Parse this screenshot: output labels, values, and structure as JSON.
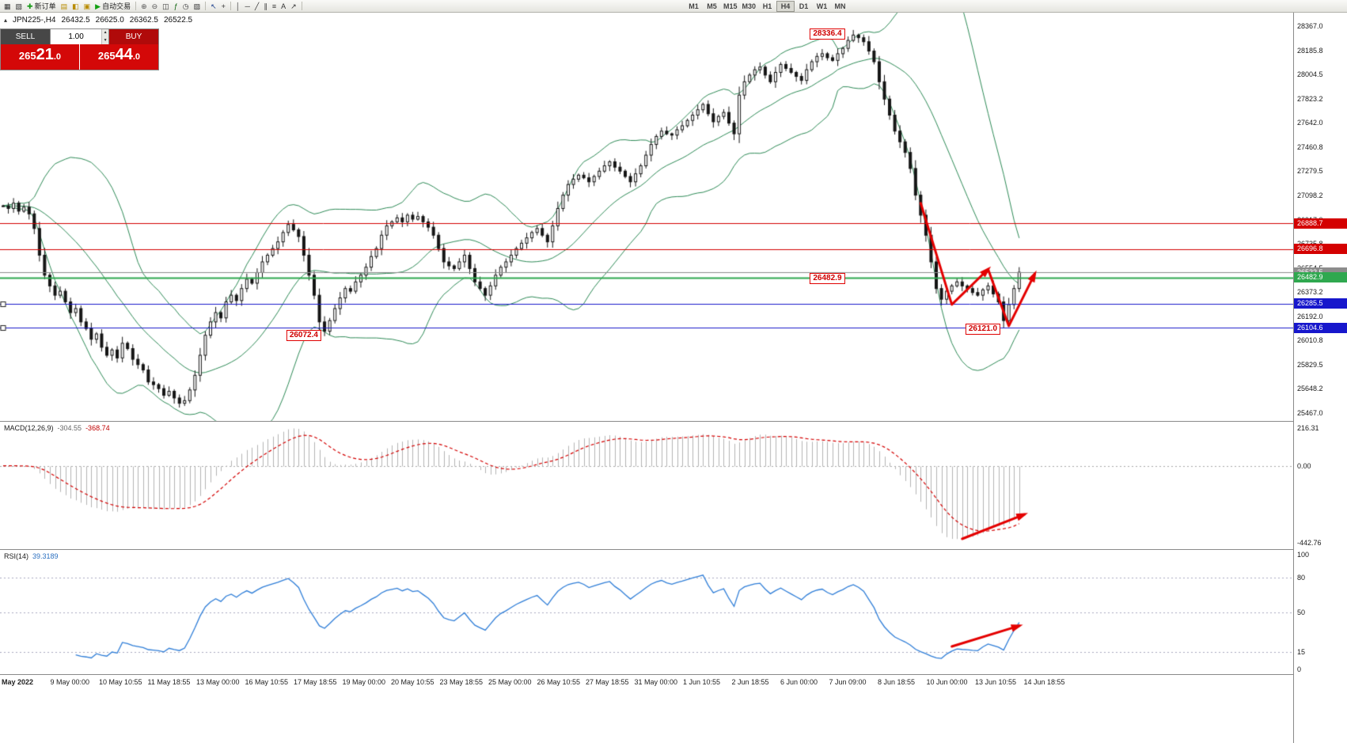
{
  "toolbar": {
    "buttons": [
      {
        "name": "new-chart-button",
        "icon": "new-chart-icon",
        "glyph": "▦"
      },
      {
        "name": "profiles-button",
        "icon": "profiles-icon",
        "glyph": "▧"
      },
      {
        "name": "new-order-button",
        "icon": "new-order-plus-icon",
        "glyph": "✚",
        "glyph_color": "#189a18",
        "label": "新订单"
      },
      {
        "name": "market-watch-button",
        "icon": "market-watch-icon",
        "glyph": "▤",
        "glyph_color": "#b98c00"
      },
      {
        "name": "navigator-button",
        "icon": "navigator-icon",
        "glyph": "◧",
        "glyph_color": "#b98c00"
      },
      {
        "name": "terminal-button",
        "icon": "terminal-icon",
        "glyph": "▣",
        "glyph_color": "#b98c00"
      },
      {
        "name": "autotrading-button",
        "icon": "autotrading-play-icon",
        "glyph": "▶",
        "glyph_color": "#12a012",
        "label": "自动交易"
      },
      {
        "sep": true
      },
      {
        "name": "zoom-in-button",
        "icon": "zoom-in-icon",
        "glyph": "⊕",
        "glyph_color": "#555"
      },
      {
        "name": "zoom-out-button",
        "icon": "zoom-out-icon",
        "glyph": "⊖",
        "glyph_color": "#555"
      },
      {
        "name": "tile-windows-button",
        "icon": "tile-windows-icon",
        "glyph": "◫"
      },
      {
        "name": "indicators-button",
        "icon": "indicators-icon",
        "glyph": "ƒ",
        "glyph_color": "#0a620a"
      },
      {
        "name": "periods-button",
        "icon": "clock-icon",
        "glyph": "◷"
      },
      {
        "name": "templates-button",
        "icon": "templates-icon",
        "glyph": "▨"
      },
      {
        "sep": true
      },
      {
        "name": "cursor-button",
        "icon": "cursor-icon",
        "glyph": "↖",
        "glyph_color": "#1a3e8c"
      },
      {
        "name": "crosshair-button",
        "icon": "crosshair-icon",
        "glyph": "+"
      },
      {
        "sep": true
      },
      {
        "name": "vertical-line-button",
        "icon": "vertical-line-icon",
        "glyph": "│"
      },
      {
        "name": "horizontal-line-button",
        "icon": "horizontal-line-icon",
        "glyph": "─"
      },
      {
        "name": "trendline-button",
        "icon": "trendline-icon",
        "glyph": "╱"
      },
      {
        "name": "channel-button",
        "icon": "channel-icon",
        "glyph": "∥"
      },
      {
        "name": "fibonacci-button",
        "icon": "fibonacci-icon",
        "glyph": "≡"
      },
      {
        "name": "text-button",
        "icon": "text-icon",
        "glyph": "A"
      },
      {
        "name": "arrows-button",
        "icon": "arrow-objects-icon",
        "glyph": "↗"
      },
      {
        "sep": true
      }
    ],
    "timeframes": [
      "M1",
      "M5",
      "M15",
      "M30",
      "H1",
      "H4",
      "D1",
      "W1",
      "MN"
    ],
    "active_timeframe": "H4"
  },
  "chart_header": {
    "symbol": "JPN225-,H4",
    "open": "26432.5",
    "high": "26625.0",
    "low": "26362.5",
    "close": "26522.5"
  },
  "trade_panel": {
    "sell_label": "SELL",
    "buy_label": "BUY",
    "volume": "1.00",
    "sell_price": "26521.0",
    "buy_price": "26544.0"
  },
  "chart_data": [
    {
      "type": "candlestick",
      "title": "JPN225- H4 candlestick chart with Bollinger Bands",
      "ylim": [
        25467.0,
        28367.0
      ],
      "y_ticks": [
        "28367.0",
        "28185.8",
        "28004.5",
        "27823.2",
        "27642.0",
        "27460.8",
        "27279.5",
        "27098.2",
        "26917.0",
        "26735.8",
        "26554.5",
        "26373.2",
        "26192.0",
        "26010.8",
        "25829.5",
        "25648.2",
        "25467.0"
      ],
      "x_labels": [
        "May 2022",
        "9 May 00:00",
        "10 May 10:55",
        "11 May 18:55",
        "13 May 00:00",
        "16 May 10:55",
        "17 May 18:55",
        "19 May 00:00",
        "20 May 10:55",
        "23 May 18:55",
        "25 May 00:00",
        "26 May 10:55",
        "27 May 18:55",
        "31 May 00:00",
        "1 Jun 10:55",
        "2 Jun 18:55",
        "6 Jun 00:00",
        "7 Jun 09:00",
        "8 Jun 18:55",
        "10 Jun 00:00",
        "13 Jun 10:55",
        "14 Jun 18:55"
      ],
      "closes": [
        27020,
        27000,
        27040,
        26980,
        27010,
        26960,
        26850,
        26650,
        26500,
        26420,
        26350,
        26380,
        26300,
        26220,
        26250,
        26150,
        26100,
        26020,
        26060,
        25960,
        25900,
        25940,
        25880,
        25990,
        25950,
        25870,
        25830,
        25790,
        25700,
        25680,
        25650,
        25600,
        25630,
        25580,
        25540,
        25560,
        25640,
        25750,
        25900,
        26050,
        26150,
        26220,
        26180,
        26300,
        26350,
        26310,
        26400,
        26470,
        26440,
        26520,
        26600,
        26650,
        26700,
        26750,
        26820,
        26880,
        26840,
        26790,
        26650,
        26500,
        26350,
        26150,
        26080,
        26160,
        26250,
        26330,
        26400,
        26380,
        26450,
        26500,
        26560,
        26640,
        26700,
        26800,
        26870,
        26900,
        26930,
        26900,
        26950,
        26920,
        26940,
        26900,
        26860,
        26800,
        26700,
        26600,
        26570,
        26550,
        26600,
        26650,
        26550,
        26450,
        26400,
        26350,
        26420,
        26500,
        26560,
        26600,
        26650,
        26700,
        26740,
        26780,
        26820,
        26850,
        26800,
        26750,
        26870,
        27000,
        27100,
        27180,
        27220,
        27250,
        27230,
        27200,
        27240,
        27280,
        27320,
        27350,
        27310,
        27280,
        27240,
        27200,
        27260,
        27320,
        27400,
        27480,
        27540,
        27580,
        27560,
        27550,
        27590,
        27620,
        27660,
        27700,
        27740,
        27780,
        27710,
        27650,
        27690,
        27720,
        27640,
        27560,
        27850,
        27950,
        28000,
        28040,
        28060,
        28000,
        27950,
        28020,
        28080,
        28050,
        28020,
        27990,
        27960,
        28040,
        28100,
        28140,
        28160,
        28130,
        28110,
        28160,
        28200,
        28260,
        28300,
        28280,
        28250,
        28180,
        28100,
        27950,
        27820,
        27700,
        27580,
        27500,
        27420,
        27300,
        27100,
        26950,
        26800,
        26600,
        26400,
        26320,
        26380,
        26420,
        26450,
        26420,
        26400,
        26370,
        26350,
        26390,
        26420,
        26360,
        26300,
        26160,
        26280,
        26400,
        26522
      ],
      "bollinger": {
        "period": 20,
        "deviation": 2,
        "color": "#2e8b57"
      },
      "hlines": [
        {
          "price": 26888.7,
          "label": "26888.7",
          "color": "#d40000",
          "width": 1
        },
        {
          "price": 26696.8,
          "label": "26696.8",
          "color": "#d40000",
          "width": 1
        },
        {
          "price": 26522.5,
          "label": "26522.5",
          "color": "#8c8c8c",
          "width": 1,
          "role": "bid-line"
        },
        {
          "price": 26482.9,
          "label": "26482.9",
          "color": "#2fa84f",
          "width": 2
        },
        {
          "price": 26285.5,
          "label": "26285.5",
          "color": "#1717cc",
          "width": 1,
          "handles": true
        },
        {
          "price": 26104.6,
          "label": "26104.6",
          "color": "#1717cc",
          "width": 1,
          "handles": true
        }
      ],
      "callouts": [
        {
          "text": "28336.4",
          "i": 159,
          "p": 28308
        },
        {
          "text": "26482.9",
          "i": 159,
          "p": 26478
        },
        {
          "text": "26072.4",
          "i": 58,
          "p": 26050
        },
        {
          "text": "26121.0",
          "i": 189,
          "p": 26095
        }
      ],
      "arrows": [
        {
          "points": [
            [
              177,
              27040
            ],
            [
              183,
              26280
            ],
            [
              190,
              26545
            ],
            [
              194,
              26120
            ],
            [
              199,
              26510
            ]
          ],
          "heads": [
            2,
            4
          ],
          "color": "#e40000",
          "width": 3
        }
      ]
    },
    {
      "type": "macd",
      "label": "MACD(12,26,9)",
      "params": [
        12,
        26,
        9
      ],
      "value_main": "-304.55",
      "value_signal": "-368.74",
      "ylim": [
        -442.76,
        216.31
      ],
      "y_ticks": [
        "216.31",
        "0.00",
        "-442.76"
      ],
      "histogram_color": "#b4b4b4",
      "signal_color": "#d40000",
      "arrow": {
        "points": [
          [
            185,
            -420
          ],
          [
            197,
            -280
          ]
        ],
        "heads": [
          1
        ],
        "color": "#e40000",
        "width": 3
      }
    },
    {
      "type": "rsi",
      "label": "RSI(14)",
      "period": 14,
      "value": "39.3189",
      "ylim": [
        0,
        100
      ],
      "levels": [
        80,
        50,
        15
      ],
      "y_ticks": [
        "100",
        "80",
        "50",
        "15",
        "0"
      ],
      "line_color": "#2f7ed8",
      "arrow": {
        "points": [
          [
            183,
            20
          ],
          [
            196,
            38
          ]
        ],
        "heads": [
          1
        ],
        "color": "#e40000",
        "width": 3
      }
    }
  ]
}
